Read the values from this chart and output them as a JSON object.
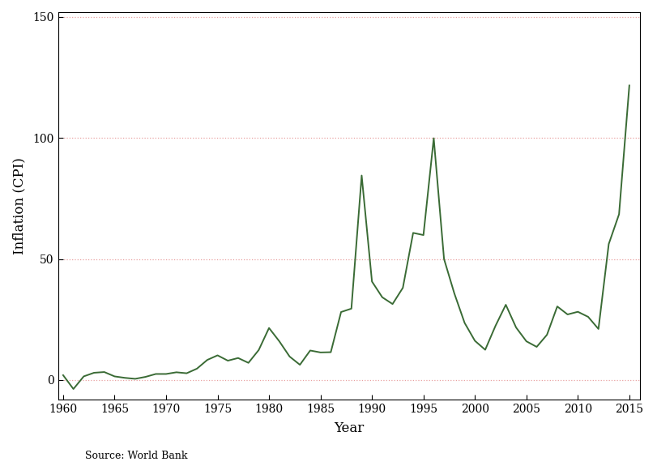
{
  "title": "",
  "xlabel": "Year",
  "ylabel": "Inflation (CPI)",
  "source_text": "Source: World Bank",
  "line_color": "#3a6b35",
  "background_color": "#ffffff",
  "years": [
    1960,
    1961,
    1962,
    1963,
    1964,
    1965,
    1966,
    1967,
    1968,
    1969,
    1970,
    1971,
    1972,
    1973,
    1974,
    1975,
    1976,
    1977,
    1978,
    1979,
    1980,
    1981,
    1982,
    1983,
    1984,
    1985,
    1986,
    1987,
    1988,
    1989,
    1990,
    1991,
    1992,
    1993,
    1994,
    1995,
    1996,
    1997,
    1998,
    1999,
    2000,
    2001,
    2002,
    2003,
    2004,
    2005,
    2006,
    2007,
    2008,
    2009,
    2010,
    2011,
    2012,
    2013,
    2014,
    2015
  ],
  "values": [
    2.0,
    -3.7,
    1.5,
    3.0,
    3.3,
    1.5,
    0.9,
    0.5,
    1.3,
    2.5,
    2.5,
    3.2,
    2.8,
    4.7,
    8.3,
    10.2,
    8.0,
    9.1,
    7.1,
    12.4,
    21.5,
    16.0,
    9.7,
    6.3,
    12.2,
    11.4,
    11.5,
    28.1,
    29.5,
    84.5,
    40.7,
    34.2,
    31.4,
    38.1,
    60.8,
    59.9,
    99.9,
    50.0,
    35.8,
    23.6,
    16.2,
    12.5,
    22.4,
    31.1,
    21.7,
    16.0,
    13.7,
    18.7,
    30.4,
    27.1,
    28.2,
    26.1,
    21.1,
    56.2,
    68.5,
    121.7
  ],
  "xlim": [
    1959.5,
    2016.0
  ],
  "ylim": [
    -8,
    152
  ],
  "yticks": [
    0,
    50,
    100,
    150
  ],
  "xticks": [
    1960,
    1965,
    1970,
    1975,
    1980,
    1985,
    1990,
    1995,
    2000,
    2005,
    2010,
    2015
  ],
  "grid_color": "#e8a0a0",
  "grid_style": "dotted",
  "line_width": 1.4,
  "figsize": [
    8.11,
    5.75
  ],
  "dpi": 100
}
